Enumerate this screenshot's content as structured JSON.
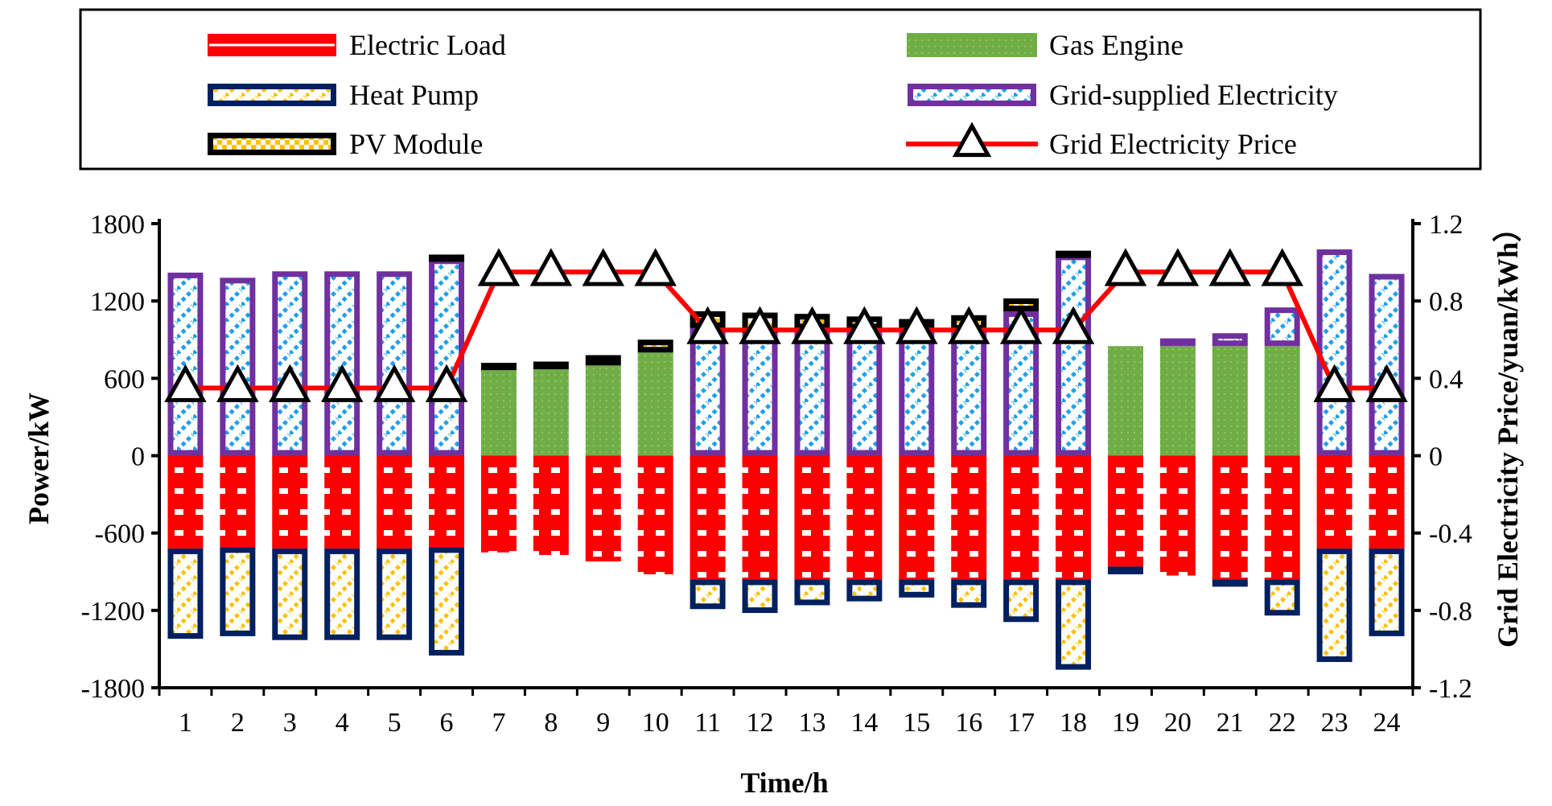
{
  "chart_data": {
    "type": "bar",
    "xlabel": "Time/h",
    "ylabel": "Power/kW",
    "y2label": "Grid Electricity Price/yuan/kWh）",
    "ylim": [
      -1800,
      1800
    ],
    "y2lim": [
      -1.2,
      1.2
    ],
    "yticks": [
      1800,
      1200,
      600,
      0,
      -600,
      -1200,
      -1800
    ],
    "y2ticks": [
      "1.2",
      "0.8",
      "0.4",
      "0",
      "-0.4",
      "-0.8",
      "-1.2"
    ],
    "categories": [
      "1",
      "2",
      "3",
      "4",
      "5",
      "6",
      "7",
      "8",
      "9",
      "10",
      "11",
      "12",
      "13",
      "14",
      "15",
      "16",
      "17",
      "18",
      "19",
      "20",
      "21",
      "22",
      "23",
      "24"
    ],
    "stacked": true,
    "legend_position": "top",
    "series": [
      {
        "name": "Electric Load",
        "axis": "left",
        "color": "#FF0000",
        "values": [
          -720,
          -710,
          -720,
          -720,
          -720,
          -710,
          -750,
          -770,
          -820,
          -920,
          -960,
          -960,
          -960,
          -960,
          -960,
          -960,
          -960,
          -960,
          -860,
          -930,
          -960,
          -960,
          -720,
          -720
        ]
      },
      {
        "name": "Heat Pump",
        "axis": "left",
        "color": "#002060",
        "values": [
          -700,
          -690,
          -710,
          -710,
          -710,
          -840,
          0,
          0,
          0,
          0,
          -230,
          -260,
          -200,
          -170,
          -140,
          -220,
          -330,
          -700,
          -60,
          0,
          -20,
          -280,
          -880,
          -680
        ]
      },
      {
        "name": "Gas Engine",
        "axis": "left",
        "color": "#70AD47",
        "values": [
          0,
          0,
          0,
          0,
          0,
          0,
          680,
          670,
          700,
          800,
          0,
          0,
          0,
          0,
          0,
          0,
          0,
          0,
          850,
          850,
          850,
          850,
          0,
          0
        ]
      },
      {
        "name": "Grid-supplied Electricity",
        "axis": "left",
        "color": "#7030A0",
        "values": [
          1420,
          1380,
          1430,
          1430,
          1430,
          1530,
          0,
          0,
          0,
          0,
          990,
          950,
          980,
          980,
          990,
          970,
          1120,
          1560,
          0,
          60,
          100,
          300,
          1600,
          1410
        ]
      },
      {
        "name": "PV Module",
        "axis": "left",
        "color": "#FFC000",
        "values": [
          0,
          0,
          0,
          0,
          0,
          30,
          40,
          60,
          80,
          100,
          130,
          160,
          120,
          100,
          70,
          120,
          100,
          30,
          0,
          0,
          0,
          0,
          0,
          0
        ]
      },
      {
        "name": "Grid Electricity Price",
        "axis": "right",
        "type": "line",
        "color": "#FF0000",
        "values": [
          0.35,
          0.35,
          0.35,
          0.35,
          0.35,
          0.35,
          0.95,
          0.95,
          0.95,
          0.95,
          0.65,
          0.65,
          0.65,
          0.65,
          0.65,
          0.65,
          0.65,
          0.65,
          0.95,
          0.95,
          0.95,
          0.95,
          0.35,
          0.35
        ]
      }
    ]
  }
}
